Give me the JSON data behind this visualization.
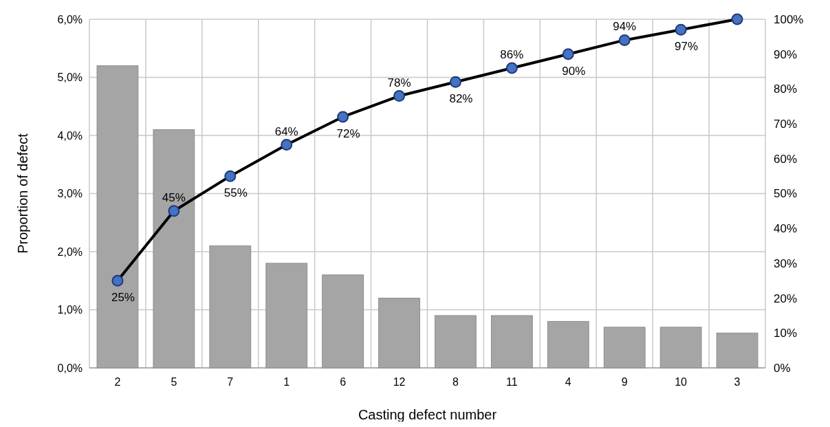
{
  "chart_data": {
    "type": "bar",
    "xlabel": "Casting defect number",
    "ylabel": "Proportion of defect",
    "categories": [
      "2",
      "5",
      "7",
      "1",
      "6",
      "12",
      "8",
      "11",
      "4",
      "9",
      "10",
      "3"
    ],
    "series": [
      {
        "color": "#a5a5a5",
        "values": [
          5.2,
          4.1,
          2.1,
          1.8,
          1.6,
          1.2,
          0.9,
          0.9,
          0.8,
          0.7,
          0.7,
          0.6
        ]
      },
      {
        "type": "line",
        "axis": "y2",
        "color": "#000000",
        "values": [
          25,
          45,
          55,
          64,
          72,
          78,
          82,
          86,
          90,
          94,
          97,
          100
        ],
        "value_labels": [
          "25%",
          "45%",
          "55%",
          "64%",
          "72%",
          "78%",
          "82%",
          "86%",
          "90%",
          "94%",
          "97%",
          null
        ]
      }
    ],
    "ylim": [
      0,
      6
    ],
    "yticks": [
      {
        "value": 0,
        "label": "0,0%"
      },
      {
        "value": 1,
        "label": "1,0%"
      },
      {
        "value": 2,
        "label": "2,0%"
      },
      {
        "value": 3,
        "label": "3,0%"
      },
      {
        "value": 4,
        "label": "4,0%"
      },
      {
        "value": 5,
        "label": "5,0%"
      },
      {
        "value": 6,
        "label": "6,0%"
      }
    ],
    "y2lim": [
      0,
      100
    ],
    "y2ticks": [
      {
        "value": 0,
        "label": "0%"
      },
      {
        "value": 10,
        "label": "10%"
      },
      {
        "value": 20,
        "label": "20%"
      },
      {
        "value": 30,
        "label": "30%"
      },
      {
        "value": 40,
        "label": "40%"
      },
      {
        "value": 50,
        "label": "50%"
      },
      {
        "value": 60,
        "label": "60%"
      },
      {
        "value": 70,
        "label": "70%"
      },
      {
        "value": 80,
        "label": "80%"
      },
      {
        "value": 90,
        "label": "90%"
      },
      {
        "value": 100,
        "label": "100%"
      }
    ],
    "grid": true,
    "marker": "circle",
    "line_style": "solid"
  }
}
